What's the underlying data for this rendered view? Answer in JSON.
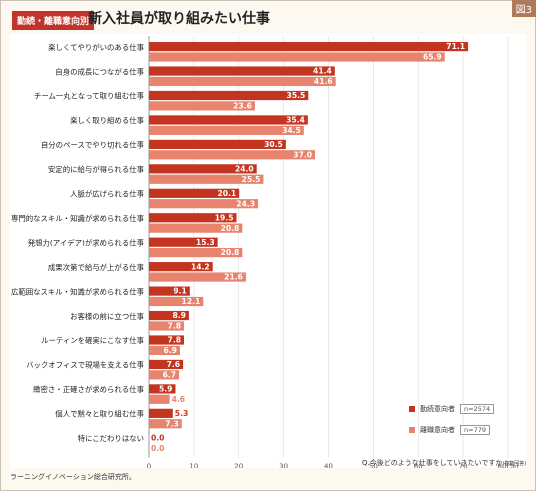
{
  "header": {
    "badge": "勤続・離職意向別",
    "title": "新入社員が取り組みたい仕事",
    "figure_tag": "図3"
  },
  "footer": {
    "source": "ラーニングイノベーション総合研究所。",
    "question": "Q.今後どのような仕事をしていきたいですか",
    "question_note": "(複数回答)"
  },
  "colors": {
    "series1": "#c4351f",
    "series2": "#e8836d"
  },
  "chart_data": {
    "type": "bar",
    "orientation": "horizontal",
    "categories": [
      "楽しくてやりがいのある仕事",
      "自身の成長につながる仕事",
      "チーム一丸となって取り組む仕事",
      "楽しく取り組める仕事",
      "自分のペースでやり切れる仕事",
      "安定的に給与が得られる仕事",
      "人脈が広げられる仕事",
      "専門的なスキル・知識が求められる仕事",
      "発想力(アイデア)が求められる仕事",
      "成果次第で給与が上がる仕事",
      "広範囲なスキル・知識が求められる仕事",
      "お客様の前に立つ仕事",
      "ルーティンを確実にこなす仕事",
      "バックオフィスで現場を支える仕事",
      "緻密さ・正確さが求められる仕事",
      "個人で黙々と取り組む仕事",
      "特にこだわりはない"
    ],
    "series": [
      {
        "name": "勤続意向者",
        "n": "n=2574",
        "values": [
          71.1,
          41.4,
          35.5,
          35.4,
          30.5,
          24.0,
          20.1,
          19.5,
          15.3,
          14.2,
          9.1,
          8.9,
          7.8,
          7.6,
          5.9,
          5.3,
          0.0
        ]
      },
      {
        "name": "離職意向者",
        "n": "n=779",
        "values": [
          65.9,
          41.6,
          23.6,
          34.5,
          37.0,
          25.5,
          24.3,
          20.8,
          20.8,
          21.6,
          12.1,
          7.8,
          6.9,
          6.7,
          4.6,
          7.3,
          0.0
        ]
      }
    ],
    "xlim": [
      0,
      80
    ],
    "xticks": [
      0,
      10,
      20,
      30,
      40,
      50,
      60,
      70,
      80
    ],
    "x_unit": "(%)",
    "grid": true
  }
}
